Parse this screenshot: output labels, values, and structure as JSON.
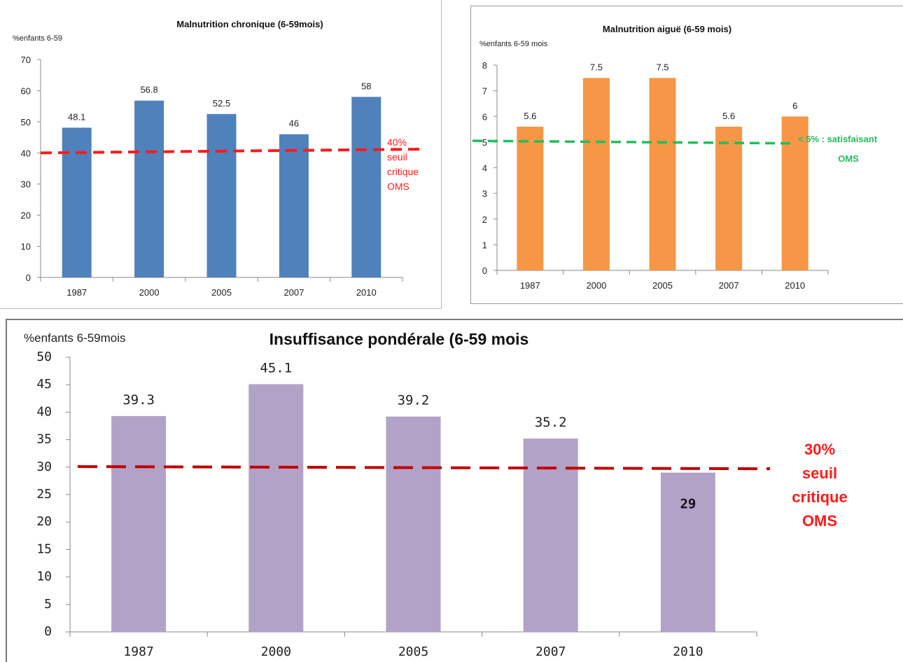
{
  "chart_data": [
    {
      "id": "chronique",
      "type": "bar",
      "title": "Malnutrition chronique (6-59mois)",
      "ylabel": "%enfants 6-59",
      "xlabel": "",
      "categories": [
        "1987",
        "2000",
        "2005",
        "2007",
        "2010"
      ],
      "values": [
        48.1,
        56.8,
        52.5,
        46,
        58
      ],
      "value_labels": [
        "48.1",
        "56.8",
        "52.5",
        "46",
        "58"
      ],
      "ylim": [
        0,
        70
      ],
      "yticks": [
        0,
        10,
        20,
        30,
        40,
        50,
        60,
        70
      ],
      "ytick_labels": [
        "0",
        "10",
        "20",
        "30",
        "40",
        "50",
        "60",
        "70"
      ],
      "bar_color": "#4f81bd",
      "grid": false,
      "threshold": {
        "value": 40,
        "end_value": 41.2,
        "color": "#ff1a1a",
        "style": "dashed",
        "label_lines": [
          "40%",
          "seuil",
          "critique",
          "OMS"
        ]
      }
    },
    {
      "id": "aigue",
      "type": "bar",
      "title": "Malnutrition aiguë (6-59 mois)",
      "ylabel": "%enfants 6-59 mois",
      "xlabel": "",
      "categories": [
        "1987",
        "2000",
        "2005",
        "2007",
        "2010"
      ],
      "values": [
        5.6,
        7.5,
        7.5,
        5.6,
        6
      ],
      "value_labels": [
        "5.6",
        "7.5",
        "7.5",
        "5.6",
        "6"
      ],
      "ylim": [
        0,
        8
      ],
      "yticks": [
        0,
        1,
        2,
        3,
        4,
        5,
        6,
        7,
        8
      ],
      "ytick_labels": [
        "0",
        "1",
        "2",
        "3",
        "4",
        "5",
        "6",
        "7",
        "8"
      ],
      "bar_color": "#f79646",
      "grid": false,
      "threshold": {
        "value": 5.05,
        "end_value": 4.95,
        "color": "#1fbf5a",
        "style": "dashed",
        "label_lines": [
          "< 5% : satisfaisant",
          "OMS"
        ]
      }
    },
    {
      "id": "ponderale",
      "type": "bar",
      "title": "Insuffisance pondérale (6-59 mois",
      "ylabel": "%enfants 6-59mois",
      "xlabel": "",
      "categories": [
        "1987",
        "2000",
        "2005",
        "2007",
        "2010"
      ],
      "values": [
        39.3,
        45.1,
        39.2,
        35.2,
        29
      ],
      "value_labels": [
        "39.3",
        "45.1",
        "39.2",
        "35.2",
        "29"
      ],
      "ylim": [
        0,
        50
      ],
      "yticks": [
        0,
        5,
        10,
        15,
        20,
        25,
        30,
        35,
        40,
        45,
        50
      ],
      "ytick_labels": [
        "0",
        "5",
        "10",
        "15",
        "20",
        "25",
        "30",
        "35",
        "40",
        "45",
        "50"
      ],
      "bar_color": "#b3a2c7",
      "grid": false,
      "threshold": {
        "value": 30.1,
        "end_value": 29.7,
        "color": "#c00000",
        "style": "dashed",
        "label_lines": [
          "30%",
          "seuil",
          "critique",
          "OMS"
        ]
      }
    }
  ]
}
